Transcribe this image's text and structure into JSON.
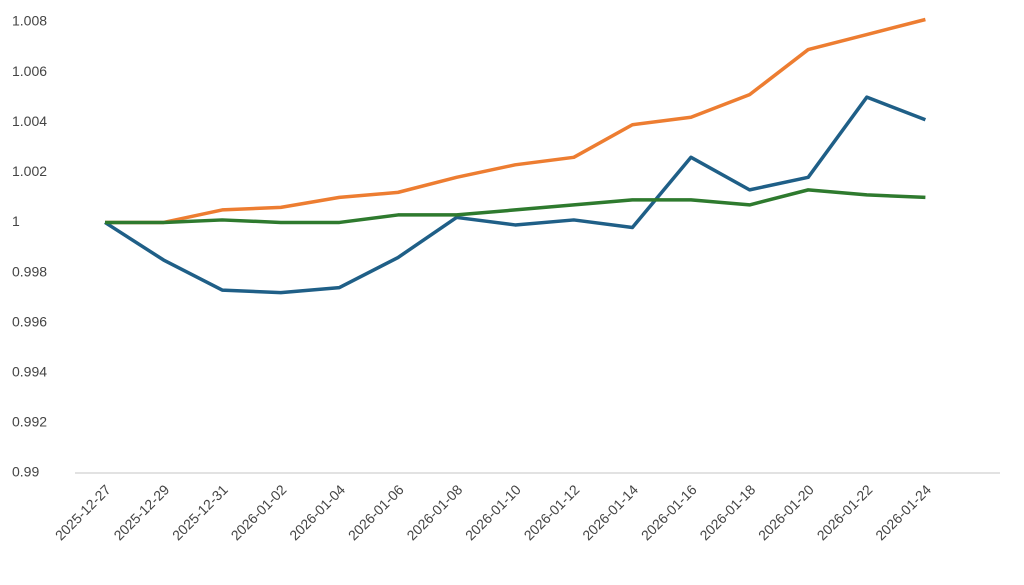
{
  "chart_data": {
    "type": "line",
    "categories": [
      "2025-12-27",
      "2025-12-29",
      "2025-12-31",
      "2026-01-02",
      "2026-01-04",
      "2026-01-06",
      "2026-01-08",
      "2026-01-10",
      "2026-01-12",
      "2026-01-14",
      "2026-01-16",
      "2026-01-18",
      "2026-01-20",
      "2026-01-22",
      "2026-01-24"
    ],
    "series": [
      {
        "color": "#ed7d31",
        "values": [
          1.0,
          1.0,
          1.0005,
          1.0006,
          1.001,
          1.0012,
          1.0018,
          1.0023,
          1.0026,
          1.0039,
          1.0042,
          1.0051,
          1.0069,
          1.0075,
          1.0081
        ]
      },
      {
        "color": "#1f5f87",
        "values": [
          1.0,
          0.9985,
          0.9973,
          0.9972,
          0.9974,
          0.9986,
          1.0002,
          0.9999,
          1.0001,
          0.9998,
          1.0026,
          1.0013,
          1.0018,
          1.005,
          1.0041
        ]
      },
      {
        "color": "#2e7a2e",
        "values": [
          1.0,
          1.0,
          1.0001,
          1.0,
          1.0,
          1.0003,
          1.0003,
          1.0005,
          1.0007,
          1.0009,
          1.0009,
          1.0007,
          1.0013,
          1.0011,
          1.001
        ]
      }
    ],
    "ylim": [
      0.99,
      1.008
    ],
    "yticks": [
      0.99,
      0.992,
      0.994,
      0.996,
      0.998,
      1,
      1.002,
      1.004,
      1.006,
      1.008
    ],
    "grid": false
  }
}
